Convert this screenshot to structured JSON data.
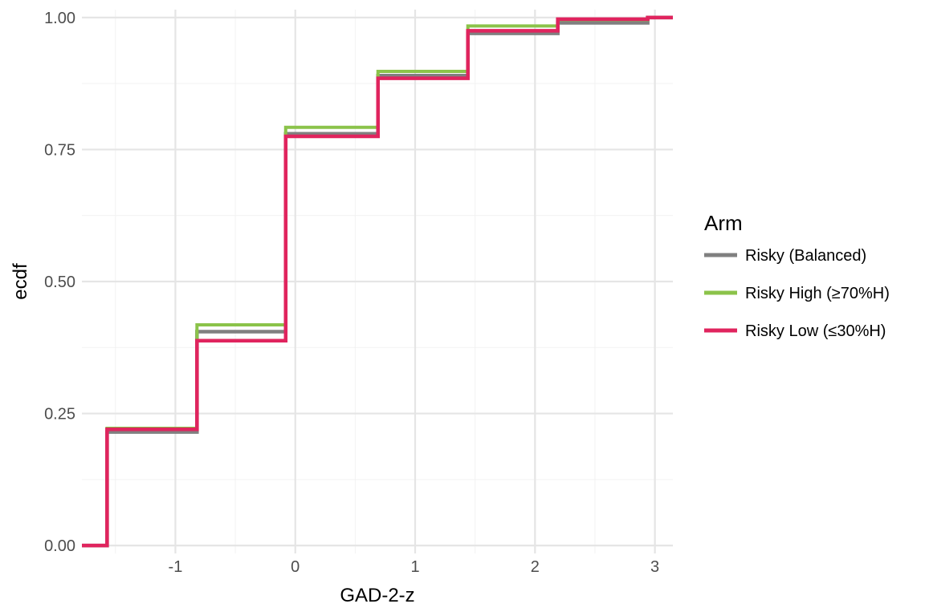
{
  "chart_data": {
    "type": "line",
    "subtype": "step-ecdf",
    "xlabel": "GAD-2-z",
    "ylabel": "ecdf",
    "xlim": [
      -1.78,
      3.15
    ],
    "ylim": [
      -0.015,
      1.015
    ],
    "x_ticks": [
      -1,
      0,
      1,
      2,
      3
    ],
    "x_tick_labels": [
      "-1",
      "0",
      "1",
      "2",
      "3"
    ],
    "y_ticks": [
      0,
      0.25,
      0.5,
      0.75,
      1.0
    ],
    "y_tick_labels": [
      "0.00",
      "0.25",
      "0.50",
      "0.75",
      "1.00"
    ],
    "grid": true,
    "legend": {
      "title": "Arm",
      "position": "right"
    },
    "series": [
      {
        "name": "Risky (Balanced)",
        "color": "#808080",
        "x": [
          -1.57,
          -0.82,
          -0.08,
          0.69,
          1.44,
          2.19,
          2.94
        ],
        "y": [
          0.215,
          0.405,
          0.78,
          0.89,
          0.97,
          0.99,
          1.0
        ]
      },
      {
        "name": "Risky High (≥70%H)",
        "color": "#8bc34a",
        "x": [
          -1.57,
          -0.82,
          -0.08,
          0.69,
          1.44,
          2.19,
          2.94
        ],
        "y": [
          0.222,
          0.418,
          0.792,
          0.898,
          0.984,
          0.996,
          1.0
        ]
      },
      {
        "name": "Risky Low (≤30%H)",
        "color": "#e0245e",
        "x": [
          -1.57,
          -0.82,
          -0.08,
          0.69,
          1.44,
          2.19,
          2.94
        ],
        "y": [
          0.22,
          0.388,
          0.775,
          0.885,
          0.975,
          0.997,
          1.0
        ]
      }
    ]
  }
}
